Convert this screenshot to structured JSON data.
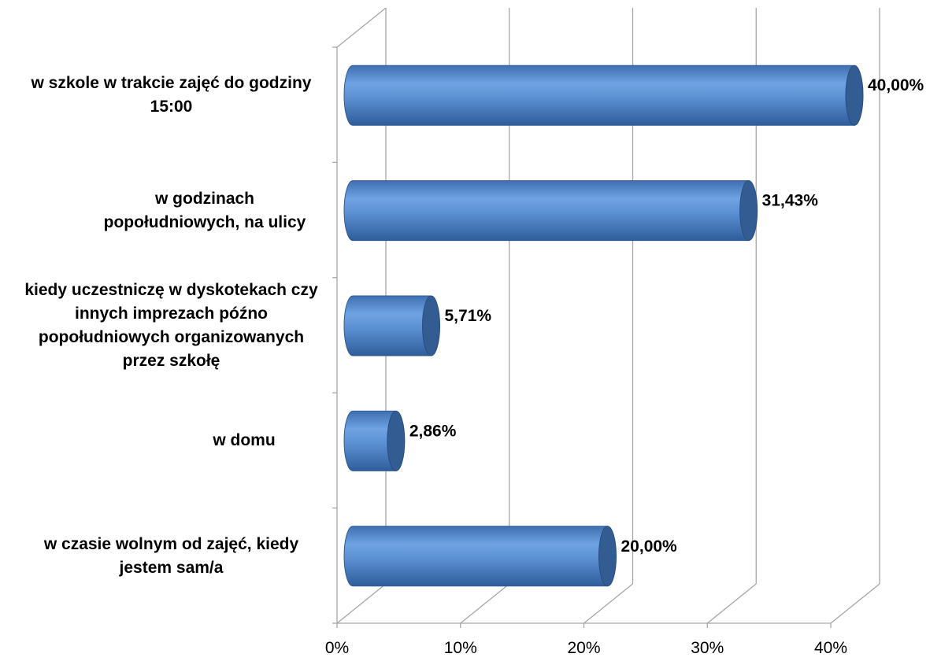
{
  "chart_data": {
    "type": "bar",
    "orientation": "horizontal",
    "style": "3d-cylinder",
    "categories": [
      "w szkole w trakcie zajęć do godziny 15:00",
      "w godzinach popołudniowych, na ulicy",
      "kiedy uczestniczę w dyskotekach czy innych imprezach późno popołudniowych organizowanych przez szkołę",
      "w domu",
      "w czasie wolnym od zajęć, kiedy jestem sam/a"
    ],
    "values": [
      40.0,
      31.43,
      5.71,
      2.86,
      20.0
    ],
    "data_labels": [
      "40,00%",
      "31,43%",
      "5,71%",
      "2,86%",
      "20,00%"
    ],
    "xticks": [
      "0%",
      "10%",
      "20%",
      "30%",
      "40%"
    ],
    "xlim": [
      0,
      40
    ],
    "grid": true,
    "legend": "none",
    "colors": {
      "bar_light": "#6d9fe0",
      "bar_mid": "#4f81bd",
      "bar_dark": "#2e5b95",
      "bar_cap": "#335d92",
      "grid": "#a6a6a6"
    }
  }
}
